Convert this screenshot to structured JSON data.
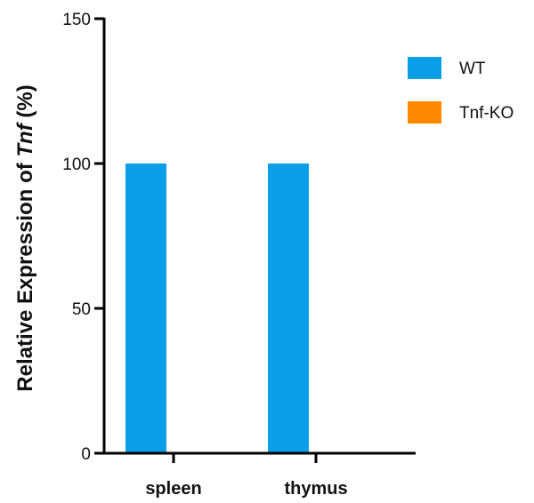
{
  "chart_data": {
    "type": "bar",
    "categories": [
      "spleen",
      "thymus"
    ],
    "series": [
      {
        "name": "WT",
        "values": [
          100,
          100
        ],
        "color": "#0a9de8"
      },
      {
        "name": "Tnf-KO",
        "values": [
          0,
          0
        ],
        "color": "#ff8a00"
      }
    ],
    "ylim": [
      0,
      150
    ],
    "yticks": [
      0,
      50,
      100,
      150
    ],
    "ylabel": {
      "prefix": "Relative Expression of ",
      "italic": "Tnf",
      "suffix": " (%)"
    },
    "xlabel": "",
    "legend_position": "top-right",
    "grid": false
  }
}
